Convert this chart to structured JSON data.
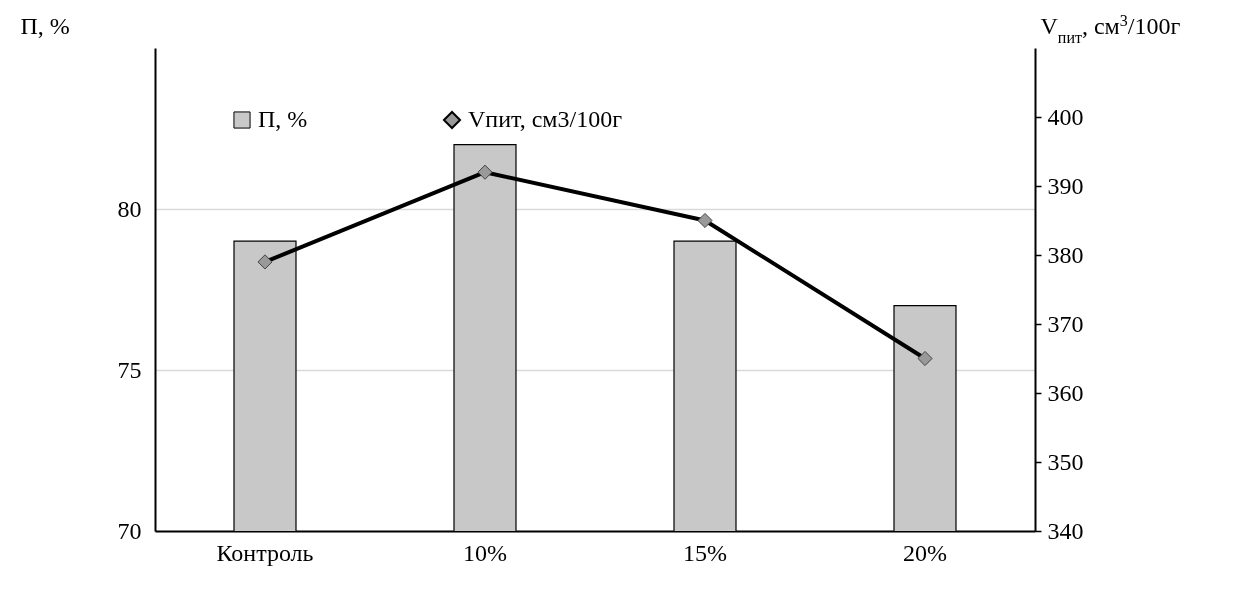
{
  "chart_data": {
    "type": "bar",
    "ylabel": "П, %",
    "y2label": "V$_{пит}$, см$^{3}$/100г",
    "categories": [
      "Контроль",
      "10%",
      "15%",
      "20%"
    ],
    "series": [
      {
        "name": "П, %",
        "color": "#c8c8c8",
        "values": [
          79,
          82,
          79,
          77
        ]
      },
      {
        "name": "Vпит, см3/100г",
        "type": "line",
        "axis": "y2",
        "color": "#000000",
        "values": [
          379,
          392,
          385,
          365
        ]
      }
    ],
    "ylim": [
      70,
      85
    ],
    "yticks": [
      70,
      75,
      80
    ],
    "y2lim": [
      340,
      410
    ],
    "y2ticks": [
      340,
      350,
      360,
      370,
      380,
      390,
      400
    ],
    "grid": "y",
    "legend": "top left",
    "marker": "diamond",
    "line_style": "solid"
  }
}
